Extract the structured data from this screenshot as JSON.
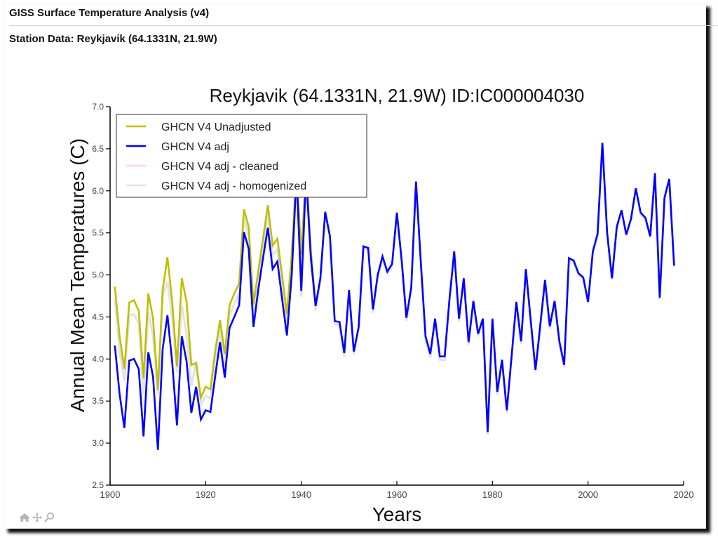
{
  "page": {
    "title": "GISS Surface Temperature Analysis (v4)",
    "subtitle": "Station Data: Reykjavik (64.1331N, 21.9W)"
  },
  "toolbar": {
    "icons": [
      "home-icon",
      "pan-icon",
      "zoom-icon"
    ]
  },
  "chart_data": {
    "type": "line",
    "title": "Reykjavik (64.1331N, 21.9W) ID:IC000004030",
    "xlabel": "Years",
    "ylabel": "Annual Mean Temperatures (C)",
    "xlim": [
      1900,
      2020
    ],
    "ylim": [
      2.5,
      7.0
    ],
    "xticks": [
      "1900",
      "1920",
      "1940",
      "1960",
      "1980",
      "2000",
      "2020"
    ],
    "xtick_values": [
      1900,
      1920,
      1940,
      1960,
      1980,
      2000,
      2020
    ],
    "yticks": [
      "2.5",
      "3.0",
      "3.5",
      "4.0",
      "4.5",
      "5.0",
      "5.5",
      "6.0",
      "6.5",
      "7.0"
    ],
    "ytick_values": [
      2.5,
      3.0,
      3.5,
      4.0,
      4.5,
      5.0,
      5.5,
      6.0,
      6.5,
      7.0
    ],
    "grid": false,
    "legend_position": "top-left",
    "series": [
      {
        "name": "GHCN V4 Unadjusted",
        "color": "#bfbf00",
        "x": [
          1901,
          1902,
          1903,
          1904,
          1905,
          1906,
          1907,
          1908,
          1909,
          1910,
          1911,
          1912,
          1913,
          1914,
          1915,
          1916,
          1917,
          1918,
          1919,
          1920,
          1921,
          1922,
          1923,
          1924,
          1925,
          1926,
          1927,
          1928,
          1929,
          1930,
          1931,
          1932,
          1933,
          1934,
          1935,
          1936,
          1937,
          1938,
          1939,
          1940,
          1941,
          1942,
          1943
        ],
        "y": [
          4.86,
          4.27,
          3.88,
          4.67,
          4.7,
          4.57,
          3.77,
          4.78,
          4.48,
          3.63,
          4.82,
          5.21,
          4.68,
          3.91,
          4.96,
          4.68,
          3.93,
          3.95,
          3.54,
          3.67,
          3.64,
          4.1,
          4.46,
          4.06,
          4.64,
          4.78,
          4.9,
          5.78,
          5.57,
          4.65,
          5.04,
          5.43,
          5.83,
          5.35,
          5.43,
          4.99,
          4.54,
          5.24,
          6.25,
          5.24,
          6.25,
          5.3,
          4.65
        ]
      },
      {
        "name": "GHCN V4 adj",
        "color": "#0000ff",
        "x": [
          1901,
          1902,
          1903,
          1904,
          1905,
          1906,
          1907,
          1908,
          1909,
          1910,
          1911,
          1912,
          1913,
          1914,
          1915,
          1916,
          1917,
          1918,
          1919,
          1920,
          1921,
          1922,
          1923,
          1924,
          1925,
          1926,
          1927,
          1928,
          1929,
          1930,
          1931,
          1932,
          1933,
          1934,
          1935,
          1936,
          1937,
          1938,
          1939,
          1940,
          1941,
          1942,
          1943,
          1944,
          1945,
          1946,
          1947,
          1948,
          1949,
          1950,
          1951,
          1952,
          1953,
          1954,
          1955,
          1956,
          1957,
          1958,
          1959,
          1960,
          1961,
          1962,
          1963,
          1964,
          1965,
          1966,
          1967,
          1968,
          1969,
          1970,
          1971,
          1972,
          1973,
          1974,
          1975,
          1976,
          1977,
          1978,
          1979,
          1980,
          1981,
          1982,
          1983,
          1984,
          1985,
          1986,
          1987,
          1988,
          1989,
          1990,
          1991,
          1992,
          1993,
          1994,
          1995,
          1996,
          1997,
          1998,
          1999,
          2000,
          2001,
          2002,
          2003,
          2004,
          2005,
          2006,
          2007,
          2008,
          2009,
          2010,
          2011,
          2012,
          2013,
          2014,
          2015,
          2016,
          2017,
          2018
        ],
        "y": [
          4.16,
          3.58,
          3.18,
          3.98,
          4.0,
          3.88,
          3.08,
          4.08,
          3.79,
          2.92,
          4.12,
          4.52,
          3.96,
          3.21,
          4.27,
          3.97,
          3.36,
          3.67,
          3.28,
          3.39,
          3.37,
          3.8,
          4.2,
          3.78,
          4.37,
          4.5,
          4.64,
          5.51,
          5.31,
          4.38,
          4.82,
          5.2,
          5.56,
          5.07,
          5.16,
          4.71,
          4.28,
          4.99,
          6.2,
          4.81,
          6.2,
          5.21,
          4.63,
          4.96,
          5.75,
          5.46,
          4.45,
          4.44,
          4.07,
          4.82,
          4.09,
          4.38,
          5.34,
          5.32,
          4.59,
          5.0,
          5.22,
          5.04,
          5.13,
          5.74,
          5.18,
          4.49,
          4.85,
          6.11,
          5.16,
          4.27,
          4.06,
          4.48,
          4.03,
          4.03,
          4.71,
          5.28,
          4.48,
          4.96,
          4.2,
          4.69,
          4.3,
          4.48,
          3.13,
          4.48,
          3.61,
          3.99,
          3.39,
          4.03,
          4.68,
          4.21,
          5.07,
          4.46,
          3.87,
          4.4,
          4.94,
          4.39,
          4.69,
          4.21,
          3.93,
          5.2,
          5.17,
          5.02,
          4.97,
          4.68,
          5.28,
          5.49,
          6.57,
          5.5,
          4.96,
          5.57,
          5.77,
          5.48,
          5.67,
          6.03,
          5.74,
          5.68,
          5.46,
          6.21,
          4.73,
          5.92,
          6.14,
          5.11
        ]
      },
      {
        "name": "GHCN V4 adj - cleaned",
        "color": "#ffd6d6",
        "x": [],
        "y": []
      },
      {
        "name": "GHCN V4 adj - homogenized",
        "color": "#e3e3e3",
        "x": [
          1901,
          1902,
          1903,
          1904,
          1905,
          1906,
          1907,
          1908,
          1909,
          1910,
          1911,
          1912,
          1913,
          1914,
          1915,
          1916,
          1917,
          1918,
          1919,
          1920,
          1921,
          1922,
          1923,
          1924,
          1925,
          1926,
          1927,
          1928,
          1929,
          1930,
          1931,
          1932,
          1933,
          1934,
          1935,
          1936,
          1937,
          1938,
          1939,
          1940,
          1941,
          1942,
          1943,
          1944,
          1945,
          1946,
          1947,
          1948,
          1949,
          1950,
          1951,
          1952,
          1953,
          1954,
          1955,
          1956,
          1957,
          1958,
          1959,
          1960,
          1961,
          1962,
          1963,
          1964,
          1965,
          1966,
          1967,
          1968,
          1969,
          1970,
          1971,
          1972,
          1973,
          1974,
          1975,
          1976,
          1977,
          1978,
          1979,
          1980,
          1981,
          1982,
          1983,
          1984,
          1985,
          1986,
          1987,
          1988,
          1989,
          1990,
          1991,
          1992,
          1993,
          1994,
          1995,
          1996,
          1997,
          1998,
          1999,
          2000,
          2001,
          2002,
          2003,
          2004,
          2005,
          2006,
          2007,
          2008,
          2009,
          2010,
          2011,
          2012,
          2013,
          2014,
          2015,
          2016,
          2017,
          2018
        ],
        "y": [
          4.73,
          4.1,
          3.74,
          4.52,
          4.53,
          4.42,
          3.58,
          4.56,
          4.27,
          3.58,
          4.75,
          4.92,
          4.49,
          3.84,
          4.63,
          4.3,
          3.68,
          3.97,
          3.46,
          3.56,
          3.53,
          3.98,
          4.35,
          3.92,
          4.52,
          4.66,
          4.78,
          5.68,
          5.46,
          4.53,
          4.95,
          5.33,
          5.73,
          5.22,
          5.31,
          4.88,
          4.44,
          5.14,
          6.22,
          4.74,
          6.22,
          5.18,
          4.58,
          4.93,
          5.73,
          5.44,
          4.42,
          4.41,
          4.03,
          4.8,
          4.05,
          4.35,
          5.32,
          5.3,
          4.55,
          4.98,
          5.19,
          5.01,
          5.1,
          5.72,
          5.15,
          4.45,
          4.82,
          6.1,
          5.13,
          4.23,
          4.02,
          4.45,
          3.99,
          3.99,
          4.68,
          5.26,
          4.45,
          4.94,
          4.17,
          4.67,
          4.27,
          4.45,
          3.1,
          4.46,
          3.58,
          3.97,
          3.36,
          4.0,
          4.66,
          4.18,
          5.05,
          4.43,
          3.84,
          4.38,
          4.92,
          4.36,
          4.67,
          4.18,
          3.9,
          5.18,
          5.15,
          5.0,
          4.95,
          4.66,
          5.26,
          5.47,
          6.56,
          5.48,
          4.94,
          5.55,
          5.75,
          5.46,
          5.65,
          6.01,
          5.72,
          5.66,
          5.44,
          6.19,
          4.71,
          5.9,
          6.12,
          5.09
        ]
      }
    ]
  }
}
